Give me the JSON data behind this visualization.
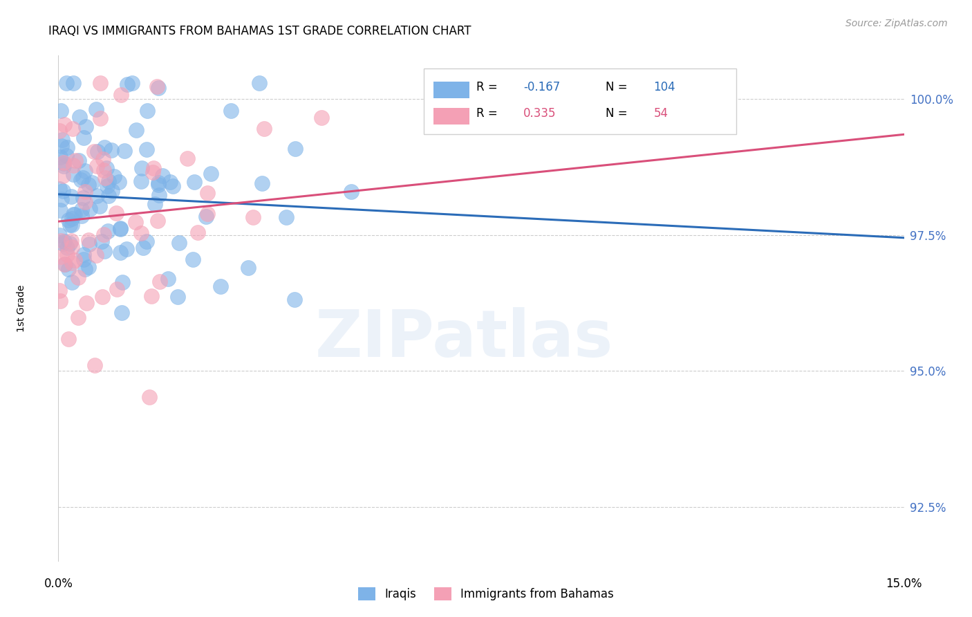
{
  "title": "IRAQI VS IMMIGRANTS FROM BAHAMAS 1ST GRADE CORRELATION CHART",
  "source": "Source: ZipAtlas.com",
  "ylabel": "1st Grade",
  "yticks": [
    92.5,
    95.0,
    97.5,
    100.0
  ],
  "ytick_labels": [
    "92.5%",
    "95.0%",
    "97.5%",
    "100.0%"
  ],
  "xmin": 0.0,
  "xmax": 15.0,
  "ymin": 91.5,
  "ymax": 100.8,
  "blue_R": -0.167,
  "blue_N": 104,
  "pink_R": 0.335,
  "pink_N": 54,
  "legend_label_blue": "Iraqis",
  "legend_label_pink": "Immigrants from Bahamas",
  "watermark": "ZIPatlas",
  "blue_color": "#7EB3E8",
  "pink_color": "#F4A0B5",
  "blue_line_color": "#2B6CB8",
  "pink_line_color": "#D94F7A",
  "blue_line_x0": 0.0,
  "blue_line_y0": 98.25,
  "blue_line_x1": 15.0,
  "blue_line_y1": 97.45,
  "pink_line_x0": 0.0,
  "pink_line_y0": 97.75,
  "pink_line_x1": 15.0,
  "pink_line_y1": 99.35
}
